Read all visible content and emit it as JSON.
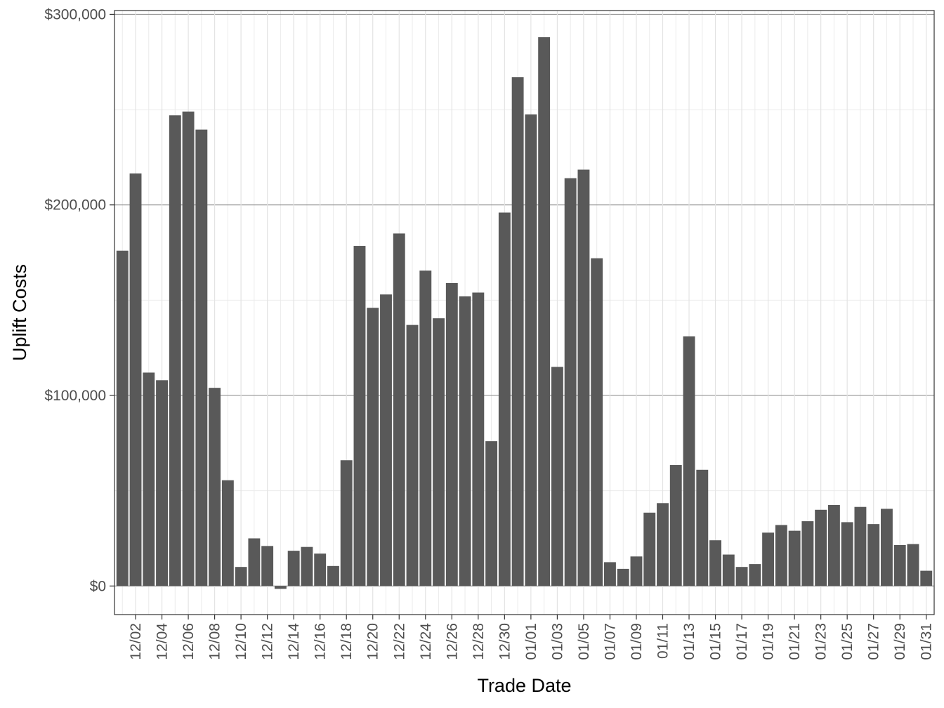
{
  "chart_data": {
    "type": "bar",
    "title": "",
    "xlabel": "Trade Date",
    "ylabel": "Uplift Costs",
    "ylim": [
      -15000,
      302000
    ],
    "y_ticks": [
      0,
      100000,
      200000,
      300000
    ],
    "y_tick_labels": [
      "$0",
      "$100,000",
      "$200,000",
      "$300,000"
    ],
    "grid": true,
    "legend": "none",
    "bar_color": "#595959",
    "categories": [
      "12/01",
      "12/02",
      "12/03",
      "12/04",
      "12/05",
      "12/06",
      "12/07",
      "12/08",
      "12/09",
      "12/10",
      "12/11",
      "12/12",
      "12/13",
      "12/14",
      "12/15",
      "12/16",
      "12/17",
      "12/18",
      "12/19",
      "12/20",
      "12/21",
      "12/22",
      "12/23",
      "12/24",
      "12/25",
      "12/26",
      "12/27",
      "12/28",
      "12/29",
      "12/30",
      "12/31",
      "01/01",
      "01/02",
      "01/03",
      "01/04",
      "01/05",
      "01/06",
      "01/07",
      "01/08",
      "01/09",
      "01/10",
      "01/11",
      "01/12",
      "01/13",
      "01/14",
      "01/15",
      "01/16",
      "01/17",
      "01/18",
      "01/19",
      "01/20",
      "01/21",
      "01/22",
      "01/23",
      "01/24",
      "01/25",
      "01/26",
      "01/27",
      "01/28",
      "01/29",
      "01/30",
      "01/31"
    ],
    "x_tick_labels": [
      "12/02",
      "12/04",
      "12/06",
      "12/08",
      "12/10",
      "12/12",
      "12/14",
      "12/16",
      "12/18",
      "12/20",
      "12/22",
      "12/24",
      "12/26",
      "12/28",
      "12/30",
      "01/01",
      "01/03",
      "01/05",
      "01/07",
      "01/09",
      "01/11",
      "01/13",
      "01/15",
      "01/17",
      "01/19",
      "01/21",
      "01/23",
      "01/25",
      "01/27",
      "01/29",
      "01/31"
    ],
    "values": [
      176000,
      216500,
      112000,
      108000,
      247000,
      249000,
      239500,
      104000,
      55500,
      10000,
      25000,
      21000,
      -1500,
      18500,
      20500,
      17000,
      10500,
      66000,
      178500,
      146000,
      153000,
      185000,
      137000,
      165500,
      140500,
      159000,
      152000,
      154000,
      76000,
      196000,
      267000,
      247500,
      288000,
      115000,
      214000,
      218500,
      172000,
      12500,
      9000,
      15500,
      38500,
      43500,
      63500,
      131000,
      61000,
      24000,
      16500,
      10000,
      11500,
      28000,
      32000,
      29000,
      34000,
      40000,
      42500,
      33500,
      41500,
      32500,
      40500,
      21500,
      22000,
      8000
    ]
  }
}
